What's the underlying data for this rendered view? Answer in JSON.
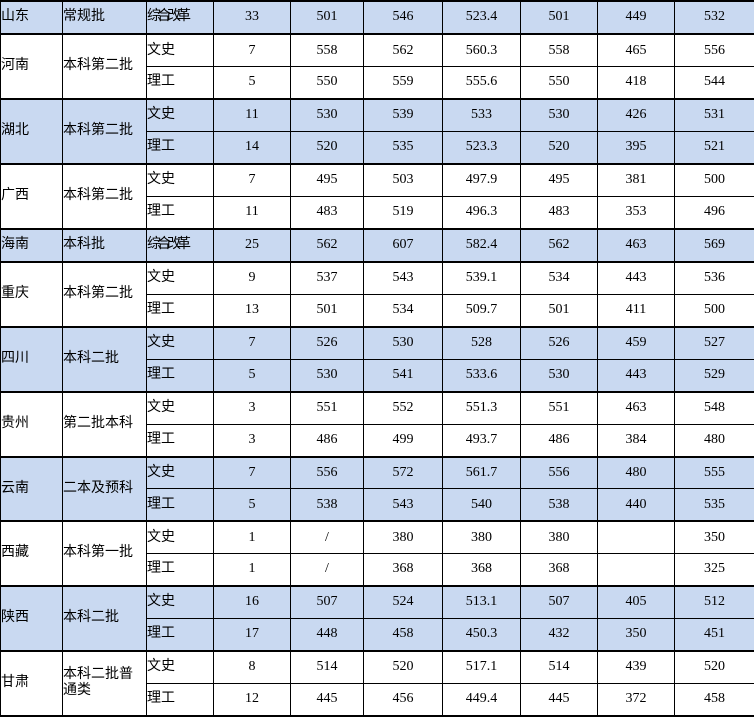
{
  "table": {
    "band_color": "#C9D9F1",
    "border_color": "#000000",
    "groups": [
      {
        "province": "山东",
        "batch": "常规批",
        "banded": true,
        "rows": [
          {
            "subject": "综合改革",
            "values": [
              "33",
              "501",
              "546",
              "523.4",
              "501",
              "449",
              "532"
            ]
          }
        ]
      },
      {
        "province": "河南",
        "batch": "本科第二批",
        "banded": false,
        "rows": [
          {
            "subject": "文史",
            "values": [
              "7",
              "558",
              "562",
              "560.3",
              "558",
              "465",
              "556"
            ]
          },
          {
            "subject": "理工",
            "values": [
              "5",
              "550",
              "559",
              "555.6",
              "550",
              "418",
              "544"
            ]
          }
        ]
      },
      {
        "province": "湖北",
        "batch": "本科第二批",
        "banded": true,
        "rows": [
          {
            "subject": "文史",
            "values": [
              "11",
              "530",
              "539",
              "533",
              "530",
              "426",
              "531"
            ]
          },
          {
            "subject": "理工",
            "values": [
              "14",
              "520",
              "535",
              "523.3",
              "520",
              "395",
              "521"
            ]
          }
        ]
      },
      {
        "province": "广西",
        "batch": "本科第二批",
        "banded": false,
        "rows": [
          {
            "subject": "文史",
            "values": [
              "7",
              "495",
              "503",
              "497.9",
              "495",
              "381",
              "500"
            ]
          },
          {
            "subject": "理工",
            "values": [
              "11",
              "483",
              "519",
              "496.3",
              "483",
              "353",
              "496"
            ]
          }
        ]
      },
      {
        "province": "海南",
        "batch": "本科批",
        "banded": true,
        "rows": [
          {
            "subject": "综合改革",
            "values": [
              "25",
              "562",
              "607",
              "582.4",
              "562",
              "463",
              "569"
            ]
          }
        ]
      },
      {
        "province": "重庆",
        "batch": "本科第二批",
        "banded": false,
        "rows": [
          {
            "subject": "文史",
            "values": [
              "9",
              "537",
              "543",
              "539.1",
              "534",
              "443",
              "536"
            ]
          },
          {
            "subject": "理工",
            "values": [
              "13",
              "501",
              "534",
              "509.7",
              "501",
              "411",
              "500"
            ]
          }
        ]
      },
      {
        "province": "四川",
        "batch": "本科二批",
        "banded": true,
        "rows": [
          {
            "subject": "文史",
            "values": [
              "7",
              "526",
              "530",
              "528",
              "526",
              "459",
              "527"
            ]
          },
          {
            "subject": "理工",
            "values": [
              "5",
              "530",
              "541",
              "533.6",
              "530",
              "443",
              "529"
            ]
          }
        ]
      },
      {
        "province": "贵州",
        "batch": "第二批本科",
        "banded": false,
        "rows": [
          {
            "subject": "文史",
            "values": [
              "3",
              "551",
              "552",
              "551.3",
              "551",
              "463",
              "548"
            ]
          },
          {
            "subject": "理工",
            "values": [
              "3",
              "486",
              "499",
              "493.7",
              "486",
              "384",
              "480"
            ]
          }
        ]
      },
      {
        "province": "云南",
        "batch": "二本及预科",
        "banded": true,
        "rows": [
          {
            "subject": "文史",
            "values": [
              "7",
              "556",
              "572",
              "561.7",
              "556",
              "480",
              "555"
            ]
          },
          {
            "subject": "理工",
            "values": [
              "5",
              "538",
              "543",
              "540",
              "538",
              "440",
              "535"
            ]
          }
        ]
      },
      {
        "province": "西藏",
        "batch": "本科第一批",
        "banded": false,
        "rows": [
          {
            "subject": "文史",
            "values": [
              "1",
              "/",
              "380",
              "380",
              "380",
              "",
              "350"
            ]
          },
          {
            "subject": "理工",
            "values": [
              "1",
              "/",
              "368",
              "368",
              "368",
              "",
              "325"
            ]
          }
        ]
      },
      {
        "province": "陕西",
        "batch": "本科二批",
        "banded": true,
        "rows": [
          {
            "subject": "文史",
            "values": [
              "16",
              "507",
              "524",
              "513.1",
              "507",
              "405",
              "512"
            ]
          },
          {
            "subject": "理工",
            "values": [
              "17",
              "448",
              "458",
              "450.3",
              "432",
              "350",
              "451"
            ]
          }
        ]
      },
      {
        "province": "甘肃",
        "batch": "本科二批普通类",
        "banded": false,
        "rows": [
          {
            "subject": "文史",
            "values": [
              "8",
              "514",
              "520",
              "517.1",
              "514",
              "439",
              "520"
            ]
          },
          {
            "subject": "理工",
            "values": [
              "12",
              "445",
              "456",
              "449.4",
              "445",
              "372",
              "458"
            ]
          }
        ]
      }
    ]
  }
}
